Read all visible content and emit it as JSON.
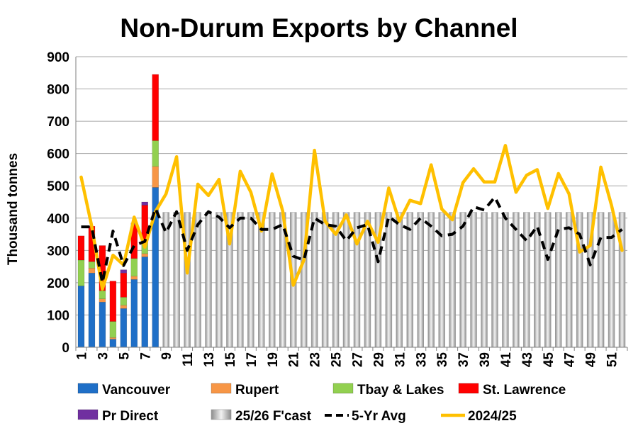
{
  "colors": {
    "Vancouver": "#1f6fc7",
    "Rupert": "#f79646",
    "Tbay & Lakes": "#92d050",
    "St. Lawrence": "#ff0000",
    "Pr Direct": "#7030a0",
    "25/26 F'cast": "#c8c8c8",
    "5-Yr Avg": "#000000",
    "2024/25": "#ffc000"
  },
  "chart_data": {
    "type": "bar",
    "title": "Non-Durum Exports by Channel",
    "ylabel": "Thousand tonnes",
    "ylim": [
      0,
      900
    ],
    "yticks": [
      0,
      100,
      200,
      300,
      400,
      500,
      600,
      700,
      800,
      900
    ],
    "x": [
      1,
      2,
      3,
      4,
      5,
      6,
      7,
      8,
      9,
      10,
      11,
      12,
      13,
      14,
      15,
      16,
      17,
      18,
      19,
      20,
      21,
      22,
      23,
      24,
      25,
      26,
      27,
      28,
      29,
      30,
      31,
      32,
      33,
      34,
      35,
      36,
      37,
      38,
      39,
      40,
      41,
      42,
      43,
      44,
      45,
      46,
      47,
      48,
      49,
      50,
      51,
      52
    ],
    "xticks": [
      1,
      3,
      5,
      7,
      9,
      11,
      13,
      15,
      17,
      19,
      21,
      23,
      25,
      27,
      29,
      31,
      33,
      35,
      37,
      39,
      41,
      43,
      45,
      47,
      49,
      51
    ],
    "grid": true,
    "legend_position": "bottom",
    "stacked_series": [
      {
        "name": "Vancouver",
        "values": [
          190,
          230,
          140,
          25,
          120,
          210,
          280,
          495
        ]
      },
      {
        "name": "Rupert",
        "values": [
          0,
          15,
          10,
          5,
          10,
          10,
          10,
          65
        ]
      },
      {
        "name": "Tbay & Lakes",
        "values": [
          80,
          20,
          25,
          50,
          25,
          55,
          40,
          80
        ]
      },
      {
        "name": "St. Lawrence",
        "values": [
          75,
          110,
          140,
          125,
          75,
          105,
          110,
          205
        ]
      },
      {
        "name": "Pr Direct",
        "values": [
          0,
          0,
          0,
          0,
          10,
          5,
          10,
          0
        ]
      }
    ],
    "forecast": {
      "name": "25/26 F'cast",
      "start_week": 9,
      "value": 418
    },
    "lines": [
      {
        "name": "5-Yr Avg",
        "style": "dashed",
        "values": [
          373,
          373,
          200,
          360,
          253,
          315,
          328,
          430,
          355,
          420,
          300,
          380,
          420,
          403,
          370,
          400,
          400,
          365,
          365,
          380,
          282,
          270,
          400,
          380,
          375,
          330,
          370,
          380,
          265,
          405,
          380,
          365,
          400,
          375,
          345,
          350,
          375,
          435,
          425,
          465,
          400,
          365,
          330,
          375,
          272,
          365,
          370,
          350,
          255,
          340,
          340,
          365
        ]
      },
      {
        "name": "2024/25",
        "style": "solid",
        "values": [
          527,
          375,
          180,
          285,
          255,
          403,
          310,
          420,
          475,
          590,
          230,
          505,
          470,
          520,
          320,
          545,
          480,
          360,
          537,
          422,
          192,
          270,
          610,
          390,
          350,
          410,
          320,
          390,
          325,
          493,
          390,
          455,
          445,
          565,
          428,
          395,
          510,
          553,
          512,
          512,
          625,
          480,
          533,
          550,
          430,
          538,
          475,
          295,
          315,
          558,
          440,
          300
        ]
      }
    ]
  }
}
